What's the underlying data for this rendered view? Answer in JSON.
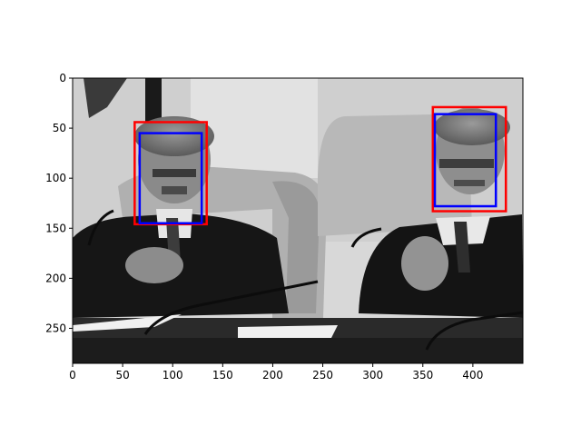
{
  "chart_data": {
    "type": "image",
    "title": "",
    "xlabel": "",
    "ylabel": "",
    "xlim": [
      0,
      450
    ],
    "ylim": [
      285,
      0
    ],
    "x_ticks": [
      0,
      50,
      100,
      150,
      200,
      250,
      300,
      350,
      400
    ],
    "y_ticks": [
      0,
      50,
      100,
      150,
      200,
      250
    ],
    "grid": false,
    "image": {
      "description": "Grayscale photograph of two men seated in a parliament hall, both clapping",
      "colormap": "gray"
    },
    "boxes": [
      {
        "name": "",
        "color": "#ff0000",
        "x": [
          62,
          134
        ],
        "y": [
          44,
          146
        ]
      },
      {
        "name": "",
        "color": "#0000ff",
        "x": [
          67,
          129
        ],
        "y": [
          55,
          145
        ]
      },
      {
        "name": "",
        "color": "#ff0000",
        "x": [
          360,
          433
        ],
        "y": [
          29,
          133
        ]
      },
      {
        "name": "",
        "color": "#0000ff",
        "x": [
          362,
          423
        ],
        "y": [
          36,
          128
        ]
      }
    ]
  }
}
